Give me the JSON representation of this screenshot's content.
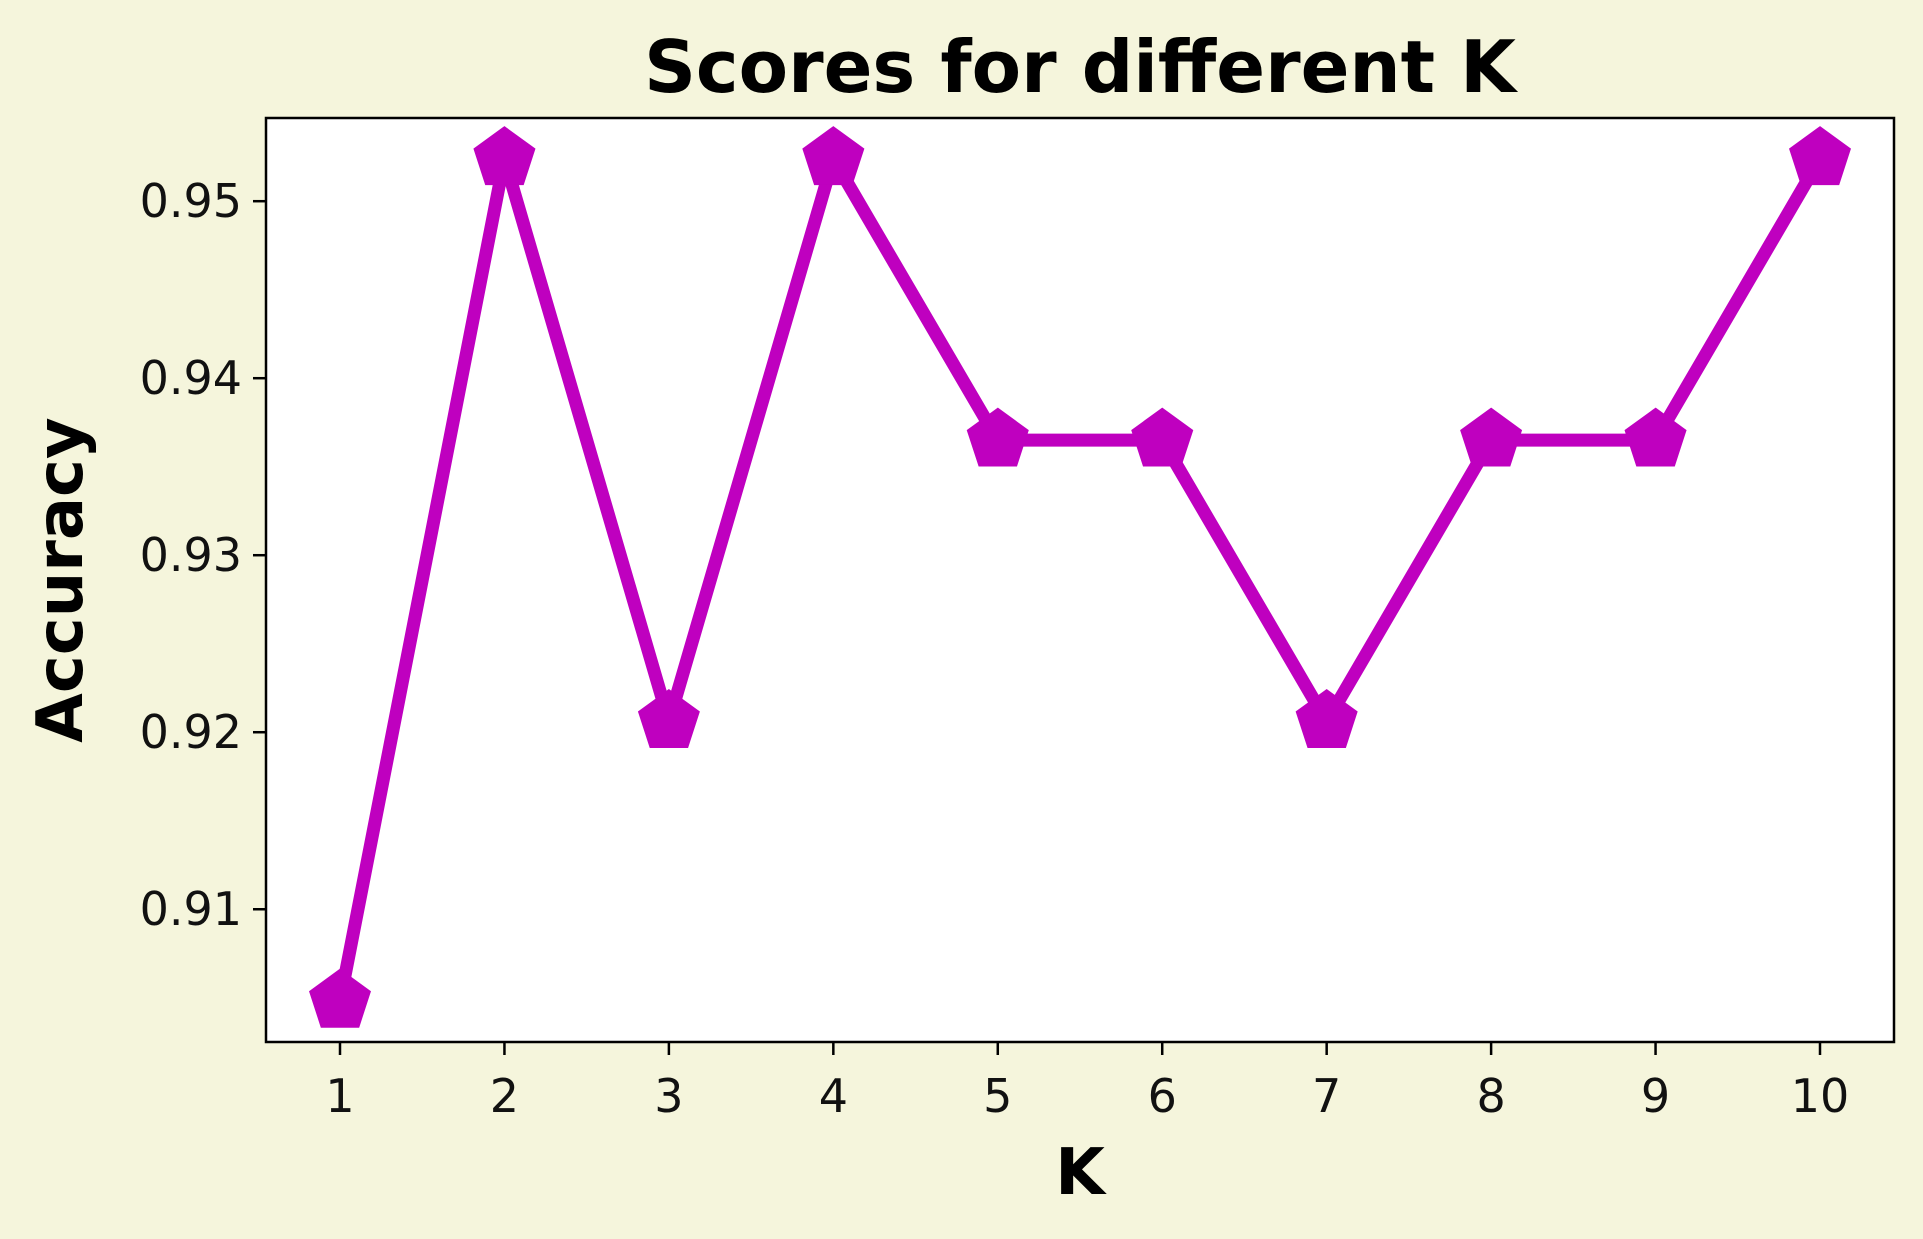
{
  "chart_data": {
    "type": "line",
    "title": "Scores for different K",
    "xlabel": "K",
    "ylabel": "Accuracy",
    "x": [
      1,
      2,
      3,
      4,
      5,
      6,
      7,
      8,
      9,
      10
    ],
    "x_ticks": [
      "1",
      "2",
      "3",
      "4",
      "5",
      "6",
      "7",
      "8",
      "9",
      "10"
    ],
    "y_ticks": [
      "0.91",
      "0.92",
      "0.93",
      "0.94",
      "0.95"
    ],
    "xlim": [
      0.55,
      10.45
    ],
    "ylim": [
      0.9025,
      0.9547
    ],
    "grid": false,
    "series": [
      {
        "values": [
          0.9048,
          0.9524,
          0.9206,
          0.9524,
          0.9365,
          0.9365,
          0.9206,
          0.9365,
          0.9365,
          0.9524
        ],
        "color": "#bf00bf",
        "marker": "pentagon"
      }
    ],
    "colors": {
      "background": "#f5f5dc",
      "plot_area": "#ffffff",
      "line": "#bf00bf"
    }
  }
}
